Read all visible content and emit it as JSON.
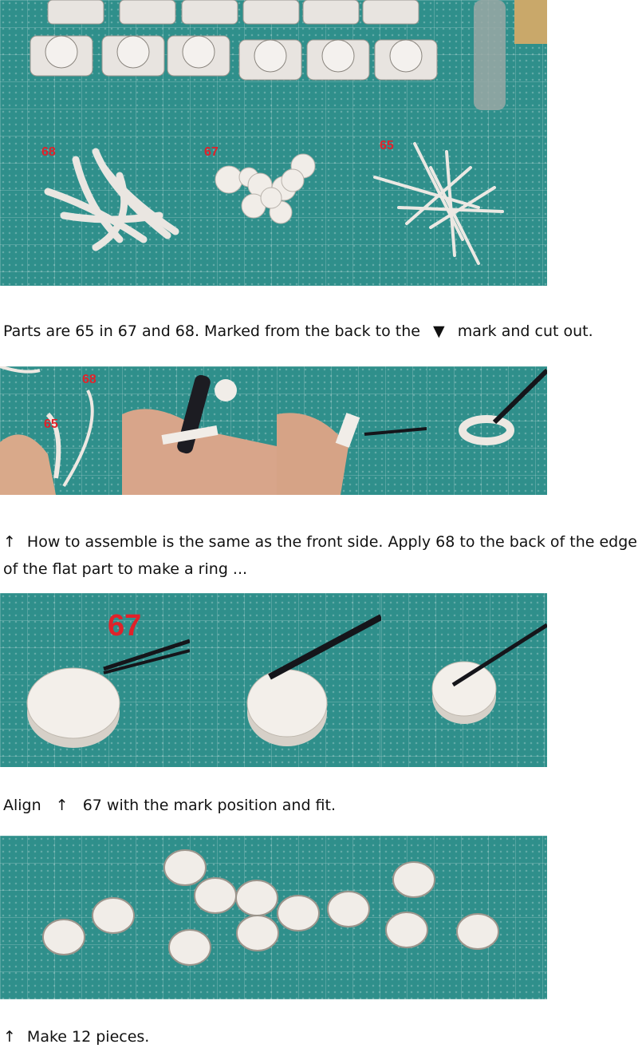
{
  "photos": {
    "parts": {
      "labels": [
        "68",
        "67",
        "65"
      ]
    },
    "step_strip_1": {
      "labels": [
        "68",
        "65"
      ]
    },
    "step_strip_2": {
      "labels": [
        "67"
      ]
    }
  },
  "captions": {
    "parts": {
      "before": "Parts are 65 in 67 and 68. Marked from the back to the",
      "symbol": "▼",
      "after": "mark and cut out."
    },
    "assemble": {
      "arrow": "↑",
      "text": "How to assemble is the same as the front side. Apply 68 to the back of the edge of the flat part to make a ring ..."
    },
    "align": {
      "before": "Align",
      "arrow": "↑",
      "after": "67 with the mark position and fit."
    },
    "finish": {
      "arrow": "↑",
      "text": "Make 12 pieces."
    }
  },
  "colors": {
    "mat": "#2f8f8b",
    "label_red": "#e0222a",
    "paper": "#e9e4df"
  }
}
